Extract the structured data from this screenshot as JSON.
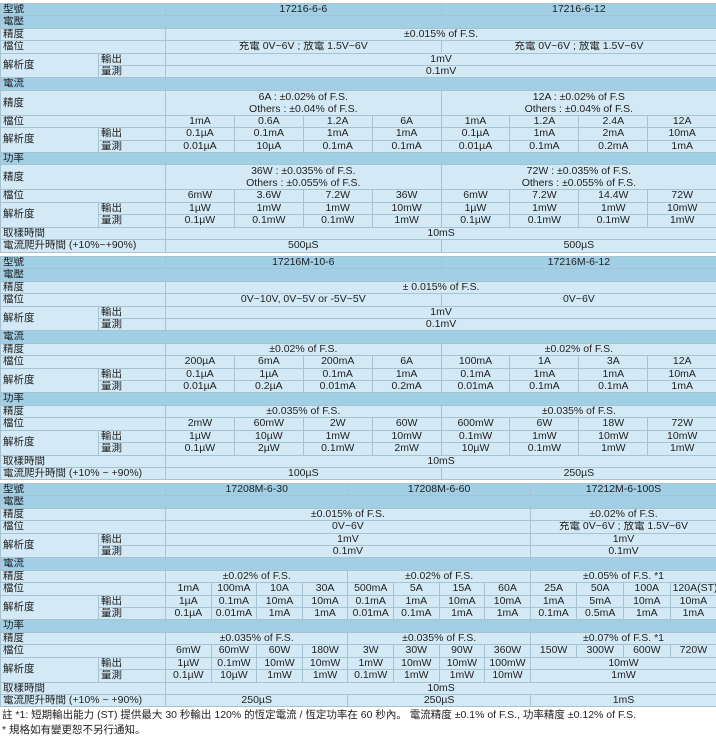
{
  "colors": {
    "header_band": "#a0cfe6",
    "cell": "#d3e9f5",
    "border": "#a7c3d2"
  },
  "sections": [
    {
      "layout": "8",
      "rows": [
        {
          "type": "hd",
          "cells": [
            [
              "型號",
              2
            ],
            [
              "17216-6-6",
              4
            ],
            [
              "17216-6-12",
              4
            ]
          ]
        },
        {
          "type": "band",
          "cells": [
            [
              "電壓",
              10
            ]
          ]
        },
        {
          "cells": [
            [
              "精度",
              2
            ],
            [
              "±0.015% of F.S.",
              8
            ]
          ]
        },
        {
          "cells": [
            [
              "檔位",
              2
            ],
            [
              "充電 0V~6V ; 放電 1.5V~6V",
              4
            ],
            [
              "充電 0V~6V ; 放電 1.5V~6V",
              4
            ]
          ]
        },
        {
          "cells": [
            [
              "解析度",
              1,
              2
            ],
            [
              "輸出"
            ],
            [
              "1mV",
              8
            ]
          ]
        },
        {
          "cells": [
            [
              "量測"
            ],
            [
              "0.1mV",
              8
            ]
          ]
        },
        {
          "type": "band",
          "cells": [
            [
              "電流",
              10
            ]
          ]
        },
        {
          "two": true,
          "cells": [
            [
              "精度",
              2
            ],
            [
              "6A : ±0.02% of F.S.\nOthers : ±0.04% of F.S.",
              4
            ],
            [
              "12A : ±0.02% of F.S\nOthers : ±0.04% of F.S.",
              4
            ]
          ]
        },
        {
          "cells": [
            [
              "檔位",
              2
            ],
            [
              "1mA"
            ],
            [
              "0.6A"
            ],
            [
              "1.2A"
            ],
            [
              "6A"
            ],
            [
              "1mA"
            ],
            [
              "1.2A"
            ],
            [
              "2.4A"
            ],
            [
              "12A"
            ]
          ]
        },
        {
          "cells": [
            [
              "解析度",
              1,
              2
            ],
            [
              "輸出"
            ],
            [
              "0.1µA"
            ],
            [
              "0.1mA"
            ],
            [
              "1mA"
            ],
            [
              "1mA"
            ],
            [
              "0.1µA"
            ],
            [
              "1mA"
            ],
            [
              "2mA"
            ],
            [
              "10mA"
            ]
          ]
        },
        {
          "cells": [
            [
              "量測"
            ],
            [
              "0.01µA"
            ],
            [
              "10µA"
            ],
            [
              "0.1mA"
            ],
            [
              "0.1mA"
            ],
            [
              "0.01µA"
            ],
            [
              "0.1mA"
            ],
            [
              "0.2mA"
            ],
            [
              "1mA"
            ]
          ]
        },
        {
          "type": "band",
          "cells": [
            [
              "功率",
              10
            ]
          ]
        },
        {
          "two": true,
          "cells": [
            [
              "精度",
              2
            ],
            [
              "36W : ±0.035% of F.S.\nOthers : ±0.055% of F.S.",
              4
            ],
            [
              "72W : ±0.035% of F.S.\nOthers : ±0.055% of F.S.",
              4
            ]
          ]
        },
        {
          "cells": [
            [
              "檔位",
              2
            ],
            [
              "6mW"
            ],
            [
              "3.6W"
            ],
            [
              "7.2W"
            ],
            [
              "36W"
            ],
            [
              "6mW"
            ],
            [
              "7.2W"
            ],
            [
              "14.4W"
            ],
            [
              "72W"
            ]
          ]
        },
        {
          "cells": [
            [
              "解析度",
              1,
              2
            ],
            [
              "輸出"
            ],
            [
              "1µW"
            ],
            [
              "1mW"
            ],
            [
              "1mW"
            ],
            [
              "10mW"
            ],
            [
              "1µW"
            ],
            [
              "1mW"
            ],
            [
              "1mW"
            ],
            [
              "10mW"
            ]
          ]
        },
        {
          "cells": [
            [
              "量測"
            ],
            [
              "0.1µW"
            ],
            [
              "0.1mW"
            ],
            [
              "0.1mW"
            ],
            [
              "1mW"
            ],
            [
              "0.1µW"
            ],
            [
              "0.1mW"
            ],
            [
              "0.1mW"
            ],
            [
              "1mW"
            ]
          ]
        },
        {
          "cells": [
            [
              "取樣時間",
              2
            ],
            [
              "10mS",
              8
            ]
          ]
        },
        {
          "cells": [
            [
              "電流爬升時間 (+10%~+90%)",
              2
            ],
            [
              "500µS",
              4
            ],
            [
              "500µS",
              4
            ]
          ]
        }
      ]
    },
    {
      "layout": "8",
      "rows": [
        {
          "type": "hd",
          "cells": [
            [
              "型號",
              2
            ],
            [
              "17216M-10-6",
              4
            ],
            [
              "17216M-6-12",
              4
            ]
          ]
        },
        {
          "type": "band",
          "cells": [
            [
              "電壓",
              10
            ]
          ]
        },
        {
          "cells": [
            [
              "精度",
              2
            ],
            [
              "±  0.015% of F.S.",
              8
            ]
          ]
        },
        {
          "cells": [
            [
              "檔位",
              2
            ],
            [
              "0V~10V, 0V~5V or -5V~5V",
              4
            ],
            [
              "0V~6V",
              4
            ]
          ]
        },
        {
          "cells": [
            [
              "解析度",
              1,
              2
            ],
            [
              "輸出"
            ],
            [
              "1mV",
              8
            ]
          ]
        },
        {
          "cells": [
            [
              "量測"
            ],
            [
              "0.1mV",
              8
            ]
          ]
        },
        {
          "type": "band",
          "cells": [
            [
              "電流",
              10
            ]
          ]
        },
        {
          "cells": [
            [
              "精度",
              2
            ],
            [
              "±0.02% of F.S.",
              4
            ],
            [
              "±0.02% of F.S.",
              4
            ]
          ]
        },
        {
          "cells": [
            [
              "檔位",
              2
            ],
            [
              "200µA"
            ],
            [
              "6mA"
            ],
            [
              "200mA"
            ],
            [
              "6A"
            ],
            [
              "100mA"
            ],
            [
              "1A"
            ],
            [
              "3A"
            ],
            [
              "12A"
            ]
          ]
        },
        {
          "cells": [
            [
              "解析度",
              1,
              2
            ],
            [
              "輸出"
            ],
            [
              "0.1µA"
            ],
            [
              "1µA"
            ],
            [
              "0.1mA"
            ],
            [
              "1mA"
            ],
            [
              "0.1mA"
            ],
            [
              "1mA"
            ],
            [
              "1mA"
            ],
            [
              "10mA"
            ]
          ]
        },
        {
          "cells": [
            [
              "量測"
            ],
            [
              "0.01µA"
            ],
            [
              "0.2µA"
            ],
            [
              "0.01mA"
            ],
            [
              "0.2mA"
            ],
            [
              "0.01mA"
            ],
            [
              "0.1mA"
            ],
            [
              "0.1mA"
            ],
            [
              "1mA"
            ]
          ]
        },
        {
          "type": "band",
          "cells": [
            [
              "功率",
              10
            ]
          ]
        },
        {
          "cells": [
            [
              "精度",
              2
            ],
            [
              "±0.035% of F.S.",
              4
            ],
            [
              "±0.035% of F.S.",
              4
            ]
          ]
        },
        {
          "cells": [
            [
              "檔位",
              2
            ],
            [
              "2mW"
            ],
            [
              "60mW"
            ],
            [
              "2W"
            ],
            [
              "60W"
            ],
            [
              "600mW"
            ],
            [
              "6W"
            ],
            [
              "18W"
            ],
            [
              "72W"
            ]
          ]
        },
        {
          "cells": [
            [
              "解析度",
              1,
              2
            ],
            [
              "輸出"
            ],
            [
              "1µW"
            ],
            [
              "10µW"
            ],
            [
              "1mW"
            ],
            [
              "10mW"
            ],
            [
              "0.1mW"
            ],
            [
              "1mW"
            ],
            [
              "10mW"
            ],
            [
              "10mW"
            ]
          ]
        },
        {
          "cells": [
            [
              "量測"
            ],
            [
              "0.1µW"
            ],
            [
              "2µW"
            ],
            [
              "0.1mW"
            ],
            [
              "2mW"
            ],
            [
              "10µW"
            ],
            [
              "0.1mW"
            ],
            [
              "1mW"
            ],
            [
              "1mW"
            ]
          ]
        },
        {
          "cells": [
            [
              "取樣時間",
              2
            ],
            [
              "10mS",
              8
            ]
          ]
        },
        {
          "cells": [
            [
              "電流爬升時間 (+10% ~ +90%)",
              2
            ],
            [
              "100µS",
              4
            ],
            [
              "250µS",
              4
            ]
          ]
        }
      ]
    },
    {
      "layout": "12",
      "rows": [
        {
          "type": "hd",
          "cells": [
            [
              "型號",
              2
            ],
            [
              "17208M-6-30",
              4
            ],
            [
              "17208M-6-60",
              4
            ],
            [
              "17212M-6-100S",
              4
            ]
          ]
        },
        {
          "type": "band",
          "cells": [
            [
              "電壓",
              14
            ]
          ]
        },
        {
          "cells": [
            [
              "精度",
              2
            ],
            [
              "±0.015% of F.S.",
              8
            ],
            [
              "±0.02% of F.S.",
              4
            ]
          ]
        },
        {
          "cells": [
            [
              "檔位",
              2
            ],
            [
              "0V~6V",
              8
            ],
            [
              "充電 0V~6V ; 放電 1.5V~6V",
              4
            ]
          ]
        },
        {
          "cells": [
            [
              "解析度",
              1,
              2
            ],
            [
              "輸出"
            ],
            [
              "1mV",
              8
            ],
            [
              "1mV",
              4
            ]
          ]
        },
        {
          "cells": [
            [
              "量測"
            ],
            [
              "0.1mV",
              8
            ],
            [
              "0.1mV",
              4
            ]
          ]
        },
        {
          "type": "band",
          "cells": [
            [
              "電流",
              14
            ]
          ]
        },
        {
          "cells": [
            [
              "精度",
              2
            ],
            [
              "±0.02% of F.S.",
              4
            ],
            [
              "±0.02% of F.S.",
              4
            ],
            [
              "±0.05% of F.S. *1",
              4
            ]
          ]
        },
        {
          "cells": [
            [
              "檔位",
              2
            ],
            [
              "1mA"
            ],
            [
              "100mA"
            ],
            [
              "10A"
            ],
            [
              "30A"
            ],
            [
              "500mA"
            ],
            [
              "5A"
            ],
            [
              "15A"
            ],
            [
              "60A"
            ],
            [
              "25A"
            ],
            [
              "50A"
            ],
            [
              "100A"
            ],
            [
              "120A(ST)"
            ]
          ]
        },
        {
          "cells": [
            [
              "解析度",
              1,
              2
            ],
            [
              "輸出"
            ],
            [
              "1µA"
            ],
            [
              "0.1mA"
            ],
            [
              "10mA"
            ],
            [
              "10mA"
            ],
            [
              "0.1mA"
            ],
            [
              "1mA"
            ],
            [
              "10mA"
            ],
            [
              "10mA"
            ],
            [
              "1mA"
            ],
            [
              "5mA"
            ],
            [
              "10mA"
            ],
            [
              "10mA"
            ]
          ]
        },
        {
          "cells": [
            [
              "量測"
            ],
            [
              "0.1µA"
            ],
            [
              "0.01mA"
            ],
            [
              "1mA"
            ],
            [
              "1mA"
            ],
            [
              "0.01mA"
            ],
            [
              "0.1mA"
            ],
            [
              "1mA"
            ],
            [
              "1mA"
            ],
            [
              "0.1mA"
            ],
            [
              "0.5mA"
            ],
            [
              "1mA"
            ],
            [
              "1mA"
            ]
          ]
        },
        {
          "type": "band",
          "cells": [
            [
              "功率",
              14
            ]
          ]
        },
        {
          "cells": [
            [
              "精度",
              2
            ],
            [
              "±0.035% of F.S.",
              4
            ],
            [
              "±0.035% of F.S.",
              4
            ],
            [
              "±0.07% of F.S. *1",
              4
            ]
          ]
        },
        {
          "cells": [
            [
              "檔位",
              2
            ],
            [
              "6mW"
            ],
            [
              "60mW"
            ],
            [
              "60W"
            ],
            [
              "180W"
            ],
            [
              "3W"
            ],
            [
              "30W"
            ],
            [
              "90W"
            ],
            [
              "360W"
            ],
            [
              "150W"
            ],
            [
              "300W"
            ],
            [
              "600W"
            ],
            [
              "720W"
            ]
          ]
        },
        {
          "cells": [
            [
              "解析度",
              1,
              2
            ],
            [
              "輸出"
            ],
            [
              "1µW"
            ],
            [
              "0.1mW"
            ],
            [
              "10mW"
            ],
            [
              "10mW"
            ],
            [
              "1mW"
            ],
            [
              "10mW"
            ],
            [
              "10mW"
            ],
            [
              "100mW"
            ],
            [
              "10mW",
              4
            ]
          ]
        },
        {
          "cells": [
            [
              "量測"
            ],
            [
              "0.1µW"
            ],
            [
              "10µW"
            ],
            [
              "1mW"
            ],
            [
              "1mW"
            ],
            [
              "0.1mW"
            ],
            [
              "1mW"
            ],
            [
              "1mW"
            ],
            [
              "10mW"
            ],
            [
              "1mW",
              4
            ]
          ]
        },
        {
          "cells": [
            [
              "取樣時間",
              2
            ],
            [
              "10mS",
              12
            ]
          ]
        },
        {
          "cells": [
            [
              "電流爬升時間 (+10% ~ +90%)",
              2
            ],
            [
              "250µS",
              4
            ],
            [
              "250µS",
              4
            ],
            [
              "1mS",
              4
            ]
          ]
        }
      ]
    }
  ],
  "footnotes": [
    "註 *1: 短期輸出能力 (ST) 提供最大 30 秒輸出 120% 的恆定電流 / 恆定功率在 60 秒內。 電流精度 ±0.1% of F.S., 功率精度 ±0.12% of F.S.",
    "* 規格如有變更恕不另行通知。"
  ]
}
